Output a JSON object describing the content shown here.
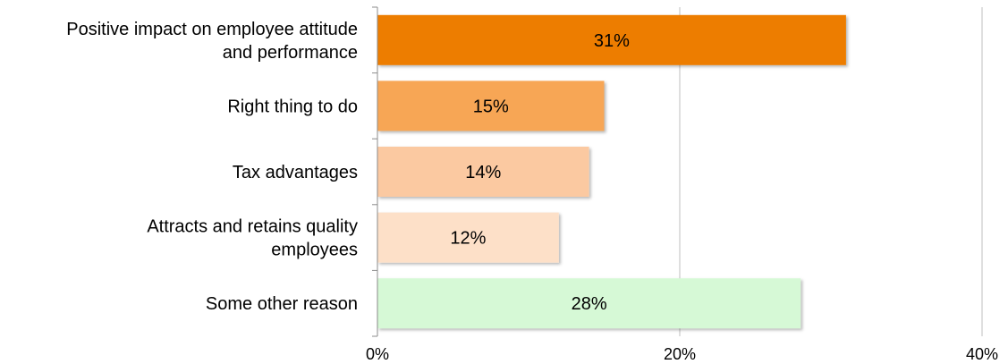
{
  "chart_data": {
    "type": "bar",
    "orientation": "horizontal",
    "categories": [
      [
        "Positive impact on employee attitude",
        "and performance"
      ],
      [
        "Right thing to do"
      ],
      [
        "Tax advantages"
      ],
      [
        "Attracts and retains quality",
        "employees"
      ],
      [
        "Some other reason"
      ]
    ],
    "values": [
      31,
      15,
      14,
      12,
      28
    ],
    "data_labels": [
      "31%",
      "15%",
      "14%",
      "12%",
      "28%"
    ],
    "colors": [
      "#ed7d05",
      "#f7a655",
      "#fbc9a1",
      "#fde0c8",
      "#d6f9d6"
    ],
    "xlim": [
      0,
      40
    ],
    "x_ticks": [
      0,
      20,
      40
    ],
    "x_tick_labels": [
      "0%",
      "20%",
      "40%"
    ],
    "title": "",
    "xlabel": "",
    "ylabel": "",
    "grid": "vertical lines at ticks",
    "legend": "none"
  }
}
